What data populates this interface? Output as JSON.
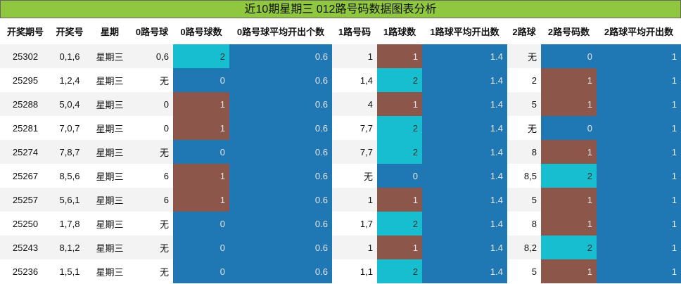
{
  "title": "近10期星期三 012路号码数据图表分析",
  "table": {
    "header": [
      "开奖期号",
      "开奖号",
      "星期",
      "0路号球",
      "0路号球数",
      "0路号球平均开出个数",
      "1路号码",
      "1路球数",
      "1路球平均开出数",
      "2路球",
      "2路号码数",
      "2路球平均开出数"
    ],
    "rows": [
      [
        25302,
        "0,1,6",
        "星期三",
        "0,6",
        2,
        0.6,
        "1",
        1,
        1.4,
        "无",
        0,
        1
      ],
      [
        25295,
        "1,2,4",
        "星期三",
        "无",
        0,
        0.6,
        "1,4",
        2,
        1.4,
        "2",
        1,
        1
      ],
      [
        25288,
        "5,0,4",
        "星期三",
        "0",
        1,
        0.6,
        "4",
        1,
        1.4,
        "5",
        1,
        1
      ],
      [
        25281,
        "7,0,7",
        "星期三",
        "0",
        1,
        0.6,
        "7,7",
        2,
        1.4,
        "无",
        0,
        1
      ],
      [
        25274,
        "7,8,7",
        "星期三",
        "无",
        0,
        0.6,
        "7,7",
        2,
        1.4,
        "8",
        1,
        1
      ],
      [
        25267,
        "8,5,6",
        "星期三",
        "6",
        1,
        0.6,
        "无",
        0,
        1.4,
        "8,5",
        2,
        1
      ],
      [
        25257,
        "5,6,1",
        "星期三",
        "6",
        1,
        0.6,
        "1",
        1,
        1.4,
        "5",
        1,
        1
      ],
      [
        25250,
        "1,7,8",
        "星期三",
        "无",
        0,
        0.6,
        "1,7",
        2,
        1.4,
        "8",
        1,
        1
      ],
      [
        25243,
        "8,1,2",
        "星期三",
        "无",
        0,
        0.6,
        "1",
        1,
        1.4,
        "8,2",
        2,
        1
      ],
      [
        25236,
        "1,5,1",
        "星期三",
        "无",
        0,
        0.6,
        "1,1",
        2,
        1.4,
        "5",
        1,
        1
      ]
    ],
    "count_colors": [
      "#1f77b4",
      "#8c564b",
      "#17becf"
    ],
    "average_color": "#1f77b4"
  }
}
